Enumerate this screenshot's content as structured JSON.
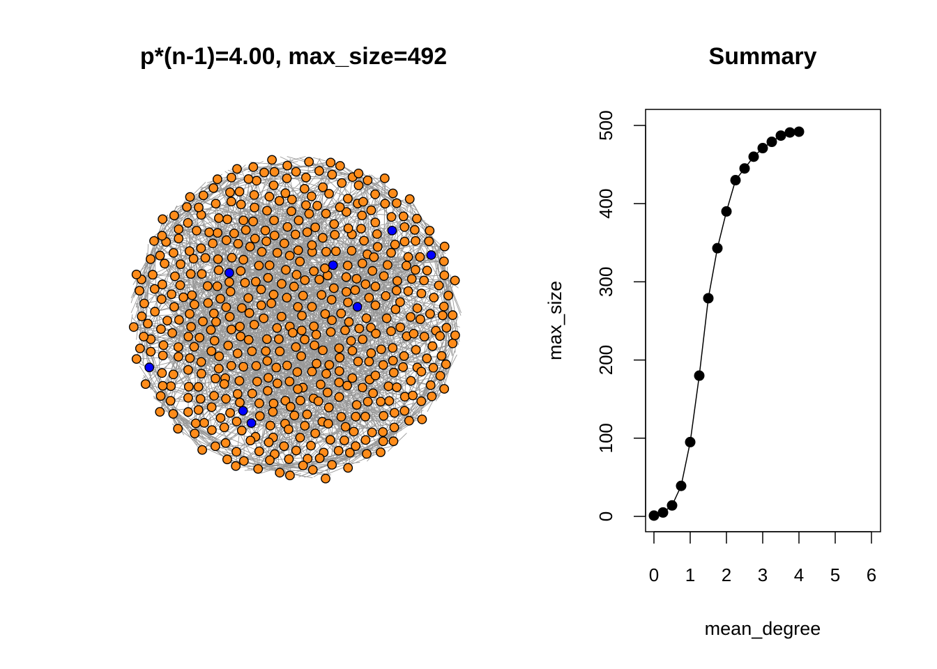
{
  "colors": {
    "node": "#ff8c1a",
    "isolated_node": "#0000ff",
    "node_border": "#000000",
    "edge": "#999999",
    "line": "#000000",
    "point": "#000000"
  },
  "chart_data": [
    {
      "type": "network",
      "title": "p*(n-1)=4.00, max_size=492",
      "mean_degree": 4.0,
      "largest_component_size": 492,
      "visible_isolated_nodes": 8
    },
    {
      "type": "line",
      "title": "Summary",
      "xlabel": "mean_degree",
      "ylabel": "max_size",
      "xlim": [
        0,
        6
      ],
      "ylim": [
        0,
        500
      ],
      "xticks": [
        "0",
        "1",
        "2",
        "3",
        "4",
        "5",
        "6"
      ],
      "yticks": [
        "0",
        "100",
        "200",
        "300",
        "400",
        "500"
      ],
      "grid": false,
      "markers": true,
      "series": [
        {
          "x": [
            0,
            0.25,
            0.5,
            0.75,
            1.0,
            1.25,
            1.5,
            1.75,
            2.0,
            2.25,
            2.5,
            2.75,
            3.0,
            3.25,
            3.5,
            3.75,
            4.0
          ],
          "values": [
            1,
            5,
            14,
            39,
            95,
            180,
            279,
            343,
            390,
            430,
            445,
            460,
            471,
            479,
            487,
            491,
            492
          ]
        }
      ]
    }
  ]
}
